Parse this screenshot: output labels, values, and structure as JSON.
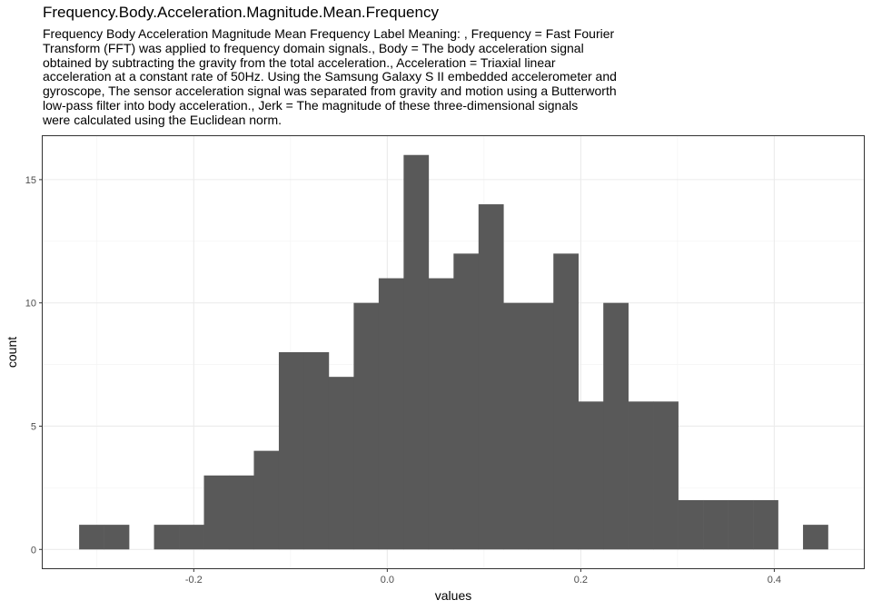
{
  "chart_data": {
    "type": "bar",
    "title": "Frequency.Body.Acceleration.Magnitude.Mean.Frequency",
    "subtitle": "Frequency Body Acceleration Magnitude Mean Frequency Label Meaning: , Frequency = Fast Fourier\nTransform (FFT) was applied to frequency domain signals., Body = The body acceleration signal\nobtained by subtracting the gravity from the total acceleration., Acceleration = Triaxial linear\nacceleration at a constant rate of 50Hz. Using the Samsung Galaxy S II embedded accelerometer and\ngyroscope, The sensor acceleration signal was separated from gravity and motion using a Butterworth\nlow-pass filter into body acceleration., Jerk = The magnitude of these three-dimensional signals\nwere calculated using the Euclidean norm.",
    "xlabel": "values",
    "ylabel": "count",
    "xlim": [
      -0.3571,
      0.4935
    ],
    "ylim": [
      -0.8,
      16.8
    ],
    "xticks": [
      -0.2,
      0.0,
      0.2,
      0.4
    ],
    "xtick_labels": [
      "-0.2",
      "0.0",
      "0.2",
      "0.4"
    ],
    "yticks": [
      0,
      5,
      10,
      15
    ],
    "ytick_labels": [
      "0",
      "5",
      "10",
      "15"
    ],
    "grid": true,
    "bar_color": "#595959",
    "bin_width": 0.0258,
    "bin_starts": [
      -0.3185,
      -0.2927,
      -0.2669,
      -0.2411,
      -0.2153,
      -0.1895,
      -0.1637,
      -0.1379,
      -0.1121,
      -0.0863,
      -0.0605,
      -0.0347,
      -0.0089,
      0.0169,
      0.0427,
      0.0685,
      0.0943,
      0.1201,
      0.1459,
      0.1717,
      0.1975,
      0.2233,
      0.2491,
      0.2749,
      0.3007,
      0.3265,
      0.3523,
      0.3781,
      0.4039,
      0.4297
    ],
    "counts": [
      1,
      1,
      0,
      1,
      1,
      3,
      3,
      4,
      8,
      8,
      7,
      10,
      11,
      16,
      11,
      12,
      14,
      10,
      10,
      12,
      6,
      10,
      6,
      6,
      2,
      2,
      2,
      2,
      0,
      1
    ]
  }
}
